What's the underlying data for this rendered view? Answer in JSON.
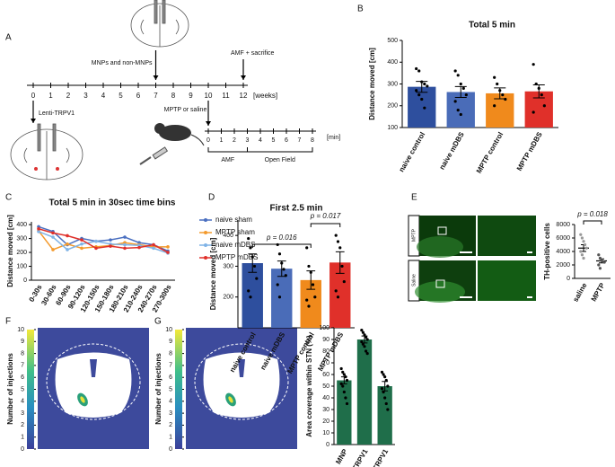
{
  "panel_labels": [
    "A",
    "B",
    "C",
    "D",
    "E",
    "F",
    "G",
    "H"
  ],
  "timeline": {
    "weeks": [
      0,
      1,
      2,
      3,
      4,
      5,
      6,
      7,
      8,
      9,
      10,
      11,
      12
    ],
    "week_unit": "[weeks]",
    "events": [
      "MNPs and non-MNPs",
      "AMF + sacrifice",
      "Lenti-TRPV1",
      "MPTP or saline"
    ],
    "minutes": [
      0,
      1,
      2,
      3,
      4,
      5,
      6,
      7,
      8
    ],
    "minute_unit": "[min]",
    "phases": [
      "AMF",
      "Open Field"
    ]
  },
  "images": {
    "rows": [
      "MPTP",
      "Saline"
    ]
  },
  "heatmaps": [
    {
      "label": "Number of injections",
      "ticks": [
        0,
        1,
        2,
        3,
        4,
        5,
        6,
        7,
        8,
        9,
        10
      ]
    },
    {
      "label": "Number of injections",
      "ticks": [
        0,
        1,
        2,
        3,
        4,
        5,
        6,
        7,
        8,
        9,
        10
      ]
    }
  ],
  "chart_data": [
    {
      "type": "bar",
      "title": "Total 5 min",
      "y_label": "Distance moved [cm]",
      "categories": [
        "naive control",
        "naive mDBS",
        "MPTP control",
        "MPTP mDBS"
      ],
      "values": [
        287,
        263,
        257,
        266
      ],
      "errors": [
        25,
        25,
        25,
        30
      ],
      "colors": [
        "#2e4f9e",
        "#4a6cb8",
        "#f08a1c",
        "#e0302a"
      ],
      "points": [
        [
          370,
          360,
          310,
          300,
          290,
          270,
          250,
          230,
          190
        ],
        [
          360,
          340,
          300,
          280,
          250,
          220,
          180,
          160
        ],
        [
          330,
          300,
          270,
          250,
          230,
          200
        ],
        [
          390,
          300,
          280,
          250,
          200,
          170
        ]
      ],
      "ylim": [
        100,
        500
      ],
      "yticks": [
        100,
        200,
        300,
        400,
        500
      ]
    },
    {
      "type": "line",
      "title": "Total 5 min in 30sec time bins",
      "y_label": "Distance moved [cm]",
      "categories": [
        "0-30s",
        "30-60s",
        "60-90s",
        "90-120s",
        "120-150s",
        "150-180s",
        "180-210s",
        "210-240s",
        "240-270s",
        "270-300s"
      ],
      "series": [
        {
          "name": "naive sham",
          "color": "#4a6fc0",
          "values": [
            385,
            350,
            255,
            300,
            280,
            290,
            310,
            270,
            255,
            210
          ]
        },
        {
          "name": "MPTP sham",
          "color": "#f39a2d",
          "values": [
            355,
            220,
            260,
            230,
            240,
            250,
            270,
            255,
            240,
            240
          ]
        },
        {
          "name": "naive mDBS",
          "color": "#7fb3e6",
          "values": [
            350,
            310,
            220,
            260,
            280,
            260,
            255,
            250,
            230,
            195
          ]
        },
        {
          "name": "MPTP mDBS",
          "color": "#e0302a",
          "values": [
            370,
            340,
            320,
            290,
            230,
            245,
            230,
            235,
            255,
            200
          ]
        }
      ],
      "ylim": [
        0,
        420
      ],
      "yticks": [
        0,
        100,
        200,
        300,
        400
      ],
      "legend": "right"
    },
    {
      "type": "bar",
      "title": "First 2.5 min",
      "y_label": "Distance moved [cm]",
      "categories": [
        "naive control",
        "naive mDBS",
        "MPTP control",
        "MPTP mDBS"
      ],
      "values": [
        310,
        292,
        255,
        312
      ],
      "errors": [
        30,
        25,
        30,
        35
      ],
      "colors": [
        "#2e4f9e",
        "#4a6cb8",
        "#f08a1c",
        "#e0302a"
      ],
      "points": [
        [
          390,
          360,
          330,
          300,
          260,
          220,
          200
        ],
        [
          370,
          340,
          310,
          290,
          270,
          240,
          200
        ],
        [
          360,
          300,
          280,
          240,
          200,
          190,
          170
        ],
        [
          400,
          380,
          360,
          300,
          250,
          220,
          200
        ]
      ],
      "annotations": [
        "p = 0.016",
        "p = 0.017"
      ],
      "ylim": [
        100,
        450
      ],
      "yticks": [
        200,
        300,
        400
      ]
    },
    {
      "type": "dot",
      "y_label": "TH-positive cells",
      "categories": [
        "saline",
        "MPTP"
      ],
      "values": [
        4500,
        2600
      ],
      "errors": [
        500,
        300
      ],
      "colors": [
        "#999999",
        "#555555"
      ],
      "points": [
        [
          6500,
          6000,
          5500,
          5000,
          4500,
          4000,
          3500,
          3000
        ],
        [
          3500,
          3000,
          2700,
          2500,
          2400,
          2000,
          1500
        ]
      ],
      "annotations": [
        "p = 0.018"
      ],
      "ylim": [
        0,
        8000
      ],
      "yticks": [
        0,
        2000,
        4000,
        6000,
        8000
      ]
    },
    {
      "type": "bar",
      "y_label": "Area coverage within STN (%)",
      "categories": [
        "MNP",
        "TRPV1",
        "MNP TRPV1"
      ],
      "values": [
        55,
        90,
        50
      ],
      "errors": [
        3,
        3,
        4
      ],
      "colors": [
        "#1f6e4a",
        "#1f6e4a",
        "#1f6e4a"
      ],
      "points": [
        [
          65,
          62,
          60,
          58,
          55,
          52,
          50,
          45,
          40,
          35
        ],
        [
          98,
          96,
          94,
          92,
          90,
          88,
          86,
          84,
          80,
          78
        ],
        [
          62,
          60,
          58,
          55,
          50,
          48,
          45,
          40,
          35,
          30
        ]
      ],
      "ylim": [
        0,
        100
      ],
      "yticks": [
        0,
        10,
        20,
        30,
        40,
        50,
        60,
        70,
        80,
        90,
        100
      ]
    }
  ]
}
